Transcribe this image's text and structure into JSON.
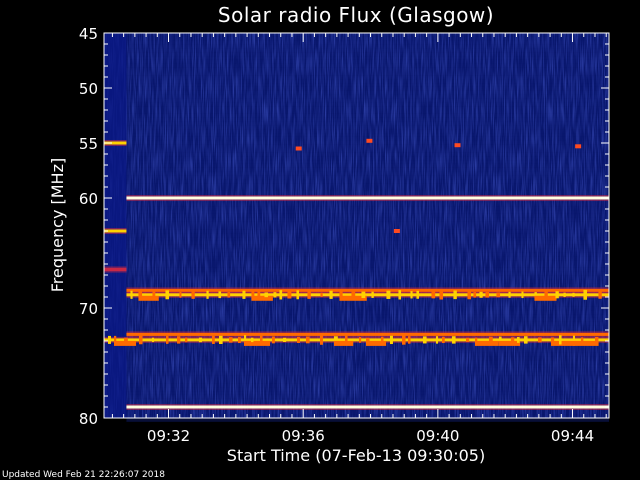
{
  "chart_data": {
    "type": "heatmap",
    "title": "Solar radio Flux (Glasgow)",
    "xlabel": "Start Time (07-Feb-13 09:30:05)",
    "ylabel": "Frequency [MHz]",
    "x_unit": "minutes",
    "xlim": [
      "09:30:05",
      "09:45:05"
    ],
    "ylim": [
      45,
      80
    ],
    "y_inverted": true,
    "x_tick_labels": [
      "09:32",
      "09:36",
      "09:40",
      "09:44"
    ],
    "x_ticks": [
      "09:32:00",
      "09:36:00",
      "09:40:00",
      "09:44:00"
    ],
    "y_ticks": [
      45,
      50,
      55,
      60,
      70,
      80
    ],
    "y_tick_labels": [
      "45",
      "50",
      "55",
      "60",
      "70",
      "80"
    ],
    "grid": false,
    "colormap": [
      "#000014",
      "#0a1078",
      "#1e3cdc",
      "#c82846",
      "#ff6a00",
      "#ffd200",
      "#ffffe0"
    ],
    "data_gap": {
      "x_range": [
        "09:30:05",
        "09:30:45"
      ]
    },
    "emission_lines": [
      {
        "freq_mhz": 55.0,
        "intensity": 0.9,
        "x_range": [
          "09:30:05",
          "09:30:45"
        ]
      },
      {
        "freq_mhz": 60.0,
        "intensity": 1.0,
        "x_range": [
          "09:30:45",
          "09:45:05"
        ]
      },
      {
        "freq_mhz": 63.0,
        "intensity": 0.8,
        "x_range": [
          "09:30:05",
          "09:30:45"
        ]
      },
      {
        "freq_mhz": 66.5,
        "intensity": 0.55,
        "x_range": [
          "09:30:05",
          "09:30:45"
        ]
      },
      {
        "freq_mhz": 68.4,
        "intensity": 0.65,
        "x_range": [
          "09:30:45",
          "09:45:05"
        ]
      },
      {
        "freq_mhz": 68.8,
        "intensity": 0.85,
        "x_range": [
          "09:30:45",
          "09:45:05"
        ],
        "modulated": true
      },
      {
        "freq_mhz": 72.4,
        "intensity": 0.65,
        "x_range": [
          "09:30:45",
          "09:45:05"
        ]
      },
      {
        "freq_mhz": 72.9,
        "intensity": 0.85,
        "x_range": [
          "09:30:05",
          "09:45:05"
        ],
        "modulated": true
      },
      {
        "freq_mhz": 79.0,
        "intensity": 1.0,
        "x_range": [
          "09:30:45",
          "09:45:05"
        ]
      }
    ],
    "sporadic_bursts": [
      {
        "time": "09:37:58",
        "freq_mhz": 54.8
      },
      {
        "time": "09:35:52",
        "freq_mhz": 55.5
      },
      {
        "time": "09:40:35",
        "freq_mhz": 55.2
      },
      {
        "time": "09:44:10",
        "freq_mhz": 55.3
      },
      {
        "time": "09:38:47",
        "freq_mhz": 63.0
      }
    ],
    "axis_color": "#ffffff"
  },
  "footer": {
    "updated_text": "Updated Wed Feb 21 22:26:07 2018"
  }
}
